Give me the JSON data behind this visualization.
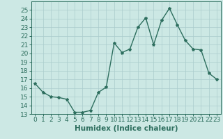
{
  "x": [
    0,
    1,
    2,
    3,
    4,
    5,
    6,
    7,
    8,
    9,
    10,
    11,
    12,
    13,
    14,
    15,
    16,
    17,
    18,
    19,
    20,
    21,
    22,
    23
  ],
  "y": [
    16.5,
    15.5,
    15.0,
    14.9,
    14.7,
    13.2,
    13.2,
    13.4,
    15.5,
    16.1,
    21.2,
    20.1,
    20.5,
    23.0,
    24.1,
    21.0,
    23.8,
    25.2,
    23.3,
    21.5,
    20.5,
    20.4,
    17.7,
    17.0
  ],
  "line_color": "#2d6e5e",
  "marker": "*",
  "marker_size": 3,
  "bg_color": "#cce8e4",
  "grid_color": "#aacccc",
  "xlabel": "Humidex (Indice chaleur)",
  "ylim": [
    13,
    26
  ],
  "xlim": [
    -0.5,
    23.5
  ],
  "yticks": [
    13,
    14,
    15,
    16,
    17,
    18,
    19,
    20,
    21,
    22,
    23,
    24,
    25
  ],
  "xticks": [
    0,
    1,
    2,
    3,
    4,
    5,
    6,
    7,
    8,
    9,
    10,
    11,
    12,
    13,
    14,
    15,
    16,
    17,
    18,
    19,
    20,
    21,
    22,
    23
  ],
  "xlabel_fontsize": 7.5,
  "tick_fontsize": 6.5,
  "line_width": 1.0
}
